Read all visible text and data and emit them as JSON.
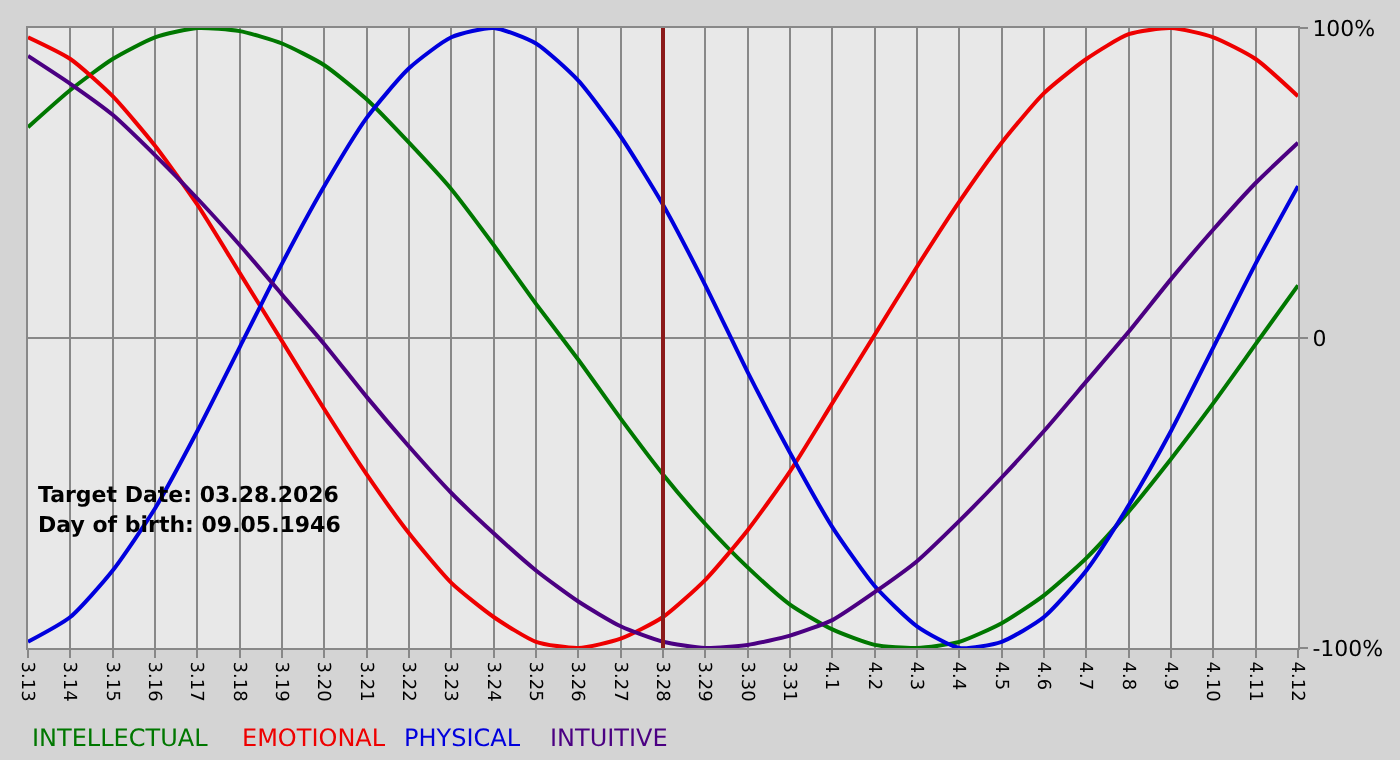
{
  "chart_data": {
    "type": "line",
    "categories": [
      "3.13",
      "3.14",
      "3.15",
      "3.16",
      "3.17",
      "3.18",
      "3.19",
      "3.20",
      "3.21",
      "3.22",
      "3.23",
      "3.24",
      "3.25",
      "3.26",
      "3.27",
      "3.28",
      "3.29",
      "3.30",
      "3.31",
      "4.1",
      "4.2",
      "4.3",
      "4.4",
      "4.5",
      "4.6",
      "4.7",
      "4.8",
      "4.9",
      "4.10",
      "4.11",
      "4.12"
    ],
    "series": [
      {
        "name": "INTELLECTUAL",
        "color": "#007700",
        "values": [
          68,
          80,
          90,
          97,
          100,
          99,
          95,
          88,
          77,
          63,
          48,
          30,
          11,
          -7,
          -26,
          -44,
          -60,
          -74,
          -86,
          -94,
          -99,
          -100,
          -98,
          -92,
          -83,
          -71,
          -56,
          -39,
          -21,
          -2,
          17
        ]
      },
      {
        "name": "EMOTIONAL",
        "color": "#ee0000",
        "values": [
          97,
          90,
          78,
          62,
          43,
          21,
          -1,
          -23,
          -44,
          -63,
          -79,
          -90,
          -98,
          -100,
          -97,
          -90,
          -78,
          -62,
          -43,
          -21,
          1,
          23,
          44,
          63,
          79,
          90,
          98,
          100,
          97,
          90,
          78
        ]
      },
      {
        "name": "PHYSICAL",
        "color": "#0000dd",
        "values": [
          -98,
          -90,
          -75,
          -55,
          -30,
          -3,
          24,
          49,
          71,
          87,
          97,
          100,
          95,
          83,
          65,
          43,
          17,
          -11,
          -37,
          -61,
          -80,
          -93,
          -100,
          -98,
          -90,
          -75,
          -54,
          -30,
          -3,
          24,
          49
        ]
      },
      {
        "name": "INTUITIVE",
        "color": "#4b0082",
        "values": [
          91,
          82,
          72,
          59,
          45,
          30,
          14,
          -2,
          -19,
          -35,
          -50,
          -63,
          -75,
          -85,
          -93,
          -98,
          -100,
          -99,
          -96,
          -91,
          -82,
          -72,
          -59,
          -45,
          -30,
          -14,
          2,
          19,
          35,
          50,
          63
        ]
      }
    ],
    "ylim": [
      -100,
      100
    ],
    "yticks": [
      {
        "value": 100,
        "label": "100%"
      },
      0,
      {
        "value": -100,
        "label": "-100%"
      }
    ],
    "ref_lines": [
      {
        "axis": "x",
        "value": "3.28",
        "color": "#8b1a1a"
      }
    ],
    "annotations": [
      "Target Date: 03.28.2026",
      "Day of birth: 09.05.1946"
    ],
    "grid": true,
    "legend": "bottom",
    "line_style": "solid",
    "marker": "none"
  }
}
